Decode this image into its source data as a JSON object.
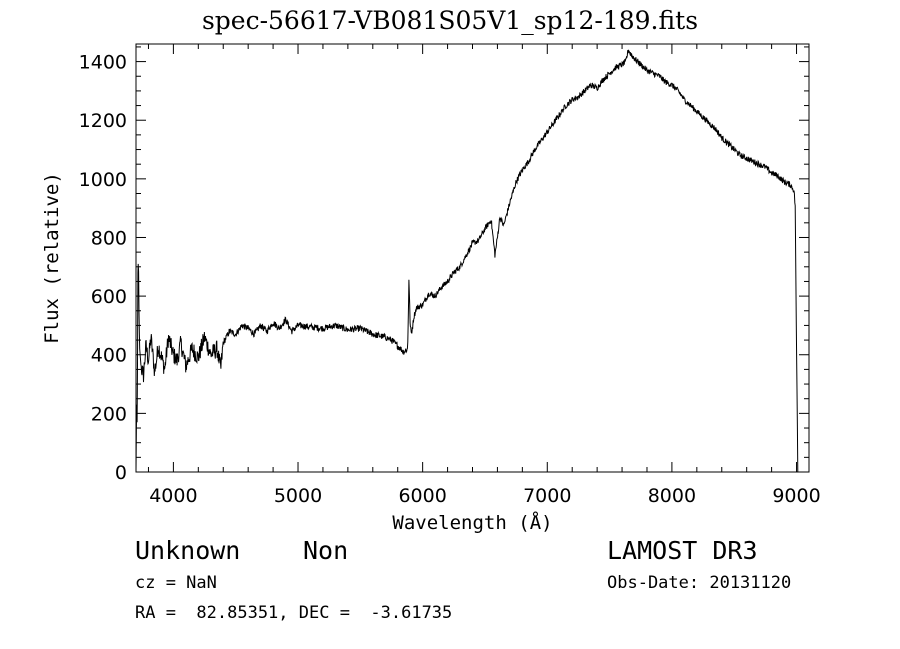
{
  "title": "spec-56617-VB081S05V1_sp12-189.fits",
  "info": {
    "class": "Unknown",
    "subclass": "Non",
    "survey": "LAMOST DR3",
    "cz": "cz = NaN",
    "obs_date": "Obs-Date: 20131120",
    "radec": "RA =  82.85351, DEC =  -3.61735"
  },
  "chart_data": {
    "type": "line",
    "title": "spec-56617-VB081S05V1_sp12-189.fits",
    "xlabel": "Wavelength (Å)",
    "ylabel": "Flux (relative)",
    "xlim": [
      3700,
      9100
    ],
    "ylim": [
      0,
      1460
    ],
    "xticks": [
      4000,
      5000,
      6000,
      7000,
      8000,
      9000
    ],
    "yticks": [
      0,
      200,
      400,
      600,
      800,
      1000,
      1200,
      1400
    ],
    "grid": false,
    "series": [
      {
        "x": [
          3700,
          3705,
          3710,
          3715,
          3720,
          3725,
          3730,
          3740,
          3760,
          3780,
          3800,
          3820,
          3850,
          3880,
          3900,
          3930,
          3960,
          4000,
          4030,
          4060,
          4100,
          4150,
          4200,
          4250,
          4300,
          4350,
          4380,
          4400,
          4450,
          4500,
          4550,
          4600,
          4650,
          4700,
          4750,
          4800,
          4850,
          4900,
          4950,
          5000,
          5100,
          5200,
          5300,
          5400,
          5500,
          5600,
          5700,
          5750,
          5800,
          5850,
          5880,
          5890,
          5900,
          5910,
          5930,
          5950,
          6000,
          6050,
          6100,
          6150,
          6200,
          6250,
          6300,
          6350,
          6400,
          6450,
          6500,
          6550,
          6580,
          6600,
          6620,
          6650,
          6700,
          6750,
          6800,
          6850,
          6900,
          6950,
          7000,
          7050,
          7100,
          7150,
          7200,
          7250,
          7300,
          7350,
          7400,
          7450,
          7500,
          7550,
          7600,
          7630,
          7650,
          7680,
          7700,
          7750,
          7800,
          7850,
          7900,
          7950,
          8000,
          8050,
          8100,
          8150,
          8200,
          8250,
          8300,
          8350,
          8400,
          8450,
          8500,
          8550,
          8600,
          8650,
          8700,
          8750,
          8800,
          8850,
          8900,
          8950,
          8980,
          8990,
          9000,
          9005,
          9010
        ],
        "y": [
          0,
          250,
          150,
          680,
          730,
          500,
          420,
          360,
          330,
          430,
          380,
          460,
          340,
          430,
          400,
          350,
          460,
          400,
          380,
          440,
          360,
          420,
          390,
          460,
          400,
          420,
          350,
          440,
          480,
          470,
          500,
          490,
          470,
          500,
          480,
          510,
          490,
          520,
          480,
          500,
          495,
          490,
          500,
          485,
          490,
          470,
          460,
          450,
          430,
          410,
          420,
          660,
          500,
          470,
          530,
          560,
          570,
          610,
          600,
          630,
          650,
          680,
          700,
          740,
          780,
          790,
          830,
          860,
          740,
          800,
          870,
          840,
          920,
          990,
          1030,
          1060,
          1100,
          1130,
          1160,
          1190,
          1220,
          1250,
          1270,
          1280,
          1300,
          1320,
          1310,
          1340,
          1360,
          1380,
          1390,
          1400,
          1440,
          1420,
          1410,
          1390,
          1370,
          1360,
          1350,
          1330,
          1320,
          1300,
          1270,
          1250,
          1230,
          1210,
          1190,
          1170,
          1140,
          1120,
          1100,
          1080,
          1070,
          1060,
          1050,
          1040,
          1020,
          1010,
          990,
          980,
          960,
          900,
          400,
          250,
          0
        ]
      }
    ]
  }
}
